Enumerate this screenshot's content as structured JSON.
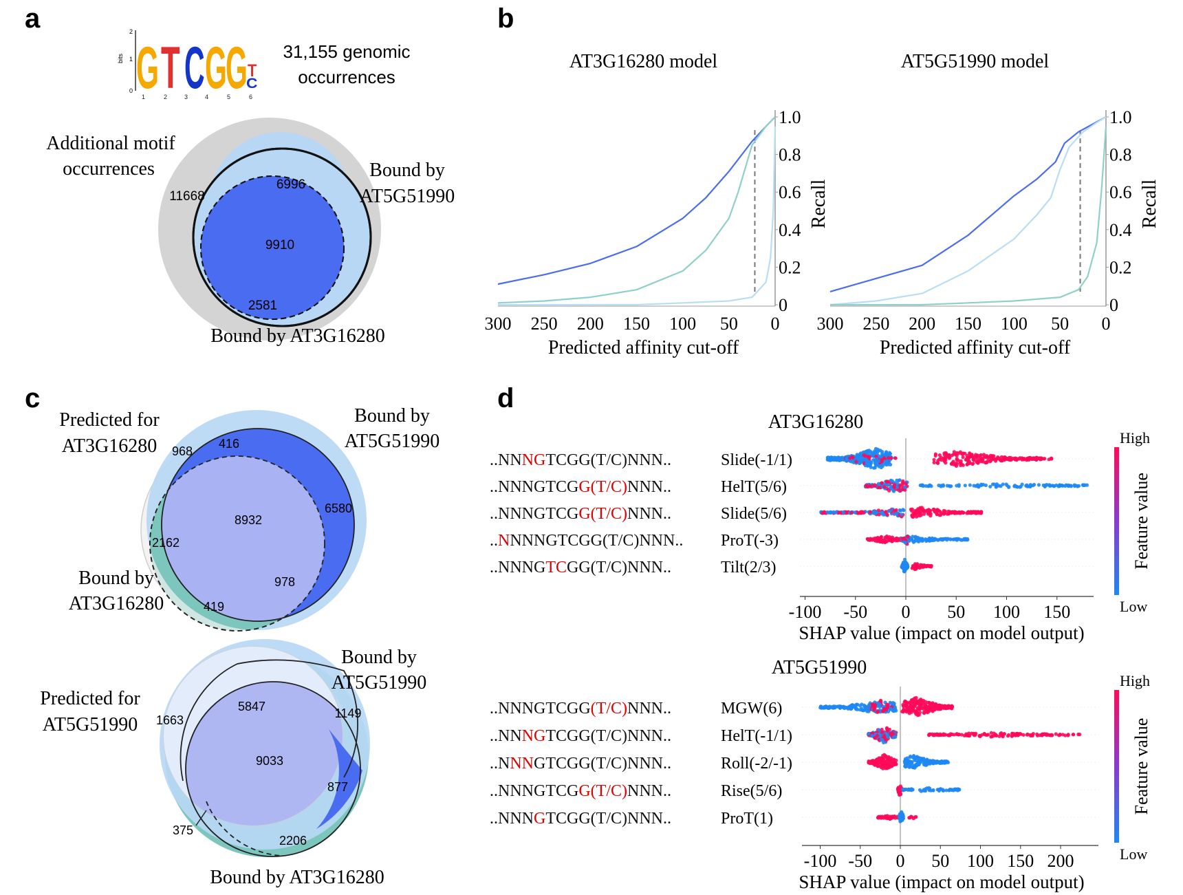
{
  "panels": {
    "a": {
      "letter": "a",
      "logo_letters": [
        "G",
        "T",
        "C",
        "G",
        "G",
        "T",
        "C"
      ],
      "logo_axis_label": "bits",
      "logo_ticks": [
        "0",
        "1",
        "2"
      ],
      "logo_positions": [
        "1",
        "2",
        "3",
        "4",
        "5",
        "6"
      ],
      "occurrences_line1": "31,155 genomic",
      "occurrences_line2": "occurrences",
      "additional_line1": "Additional motif",
      "additional_line2": "occurrences",
      "bound1_line1": "Bound by",
      "bound1_line2": "AT5G51990",
      "bound2": "Bound by AT3G16280",
      "counts": {
        "gray": "11668",
        "blue": "6996",
        "center": "9910",
        "teal": "2581"
      }
    },
    "b": {
      "letter": "b"
    },
    "c": {
      "letter": "c",
      "top": {
        "pred_line1": "Predicted for",
        "pred_line2": "AT3G16280",
        "boundA_line1": "Bound by",
        "boundA_line2": "AT5G51990",
        "boundB_line1": "Bound by",
        "boundB_line2": "AT3G16280",
        "counts": {
          "c968": "968",
          "c416": "416",
          "c6580": "6580",
          "c8932": "8932",
          "c2162": "2162",
          "c978": "978",
          "c419": "419"
        }
      },
      "bottom": {
        "pred_line1": "Predicted for",
        "pred_line2": "AT5G51990",
        "boundA_line1": "Bound by",
        "boundA_line2": "AT5G51990",
        "boundB": "Bound by AT3G16280",
        "counts": {
          "c1663": "1663",
          "c5847": "5847",
          "c1149": "1149",
          "c9033": "9033",
          "c877": "877",
          "c375": "375",
          "c2206": "2206"
        }
      }
    },
    "d": {
      "letter": "d",
      "colorbar_high": "High",
      "colorbar_low": "Low",
      "colorbar_label": "Feature value",
      "xlabel": "SHAP value (impact on model output)",
      "top": {
        "title": "AT3G16280",
        "rows": [
          {
            "seq": [
              [
                "..NN",
                "black"
              ],
              [
                "NG",
                "red"
              ],
              [
                "TCGG(T/C)NNN..",
                "black"
              ]
            ],
            "feature": "Slide(-1/1)"
          },
          {
            "seq": [
              [
                "..NNNGTCG",
                "black"
              ],
              [
                "G(T/C)",
                "red"
              ],
              [
                "NNN..",
                "black"
              ]
            ],
            "feature": "HelT(5/6)"
          },
          {
            "seq": [
              [
                "..NNNGTCG",
                "black"
              ],
              [
                "G(T/C)",
                "red"
              ],
              [
                "NNN..",
                "black"
              ]
            ],
            "feature": "Slide(5/6)"
          },
          {
            "seq": [
              [
                "..",
                "black"
              ],
              [
                "N",
                "red"
              ],
              [
                "NNNGTCGG(T/C)NNN..",
                "black"
              ]
            ],
            "feature": "ProT(-3)"
          },
          {
            "seq": [
              [
                "..NNNG",
                "black"
              ],
              [
                "TC",
                "red"
              ],
              [
                "GG(T/C)NNN..",
                "black"
              ]
            ],
            "feature": "Tilt(2/3)"
          }
        ],
        "ticks": [
          "-100",
          "-50",
          "0",
          "50",
          "100",
          "150"
        ]
      },
      "bottom": {
        "title": "AT5G51990",
        "rows": [
          {
            "seq": [
              [
                "..NNNGTCGG",
                "black"
              ],
              [
                "(T/C)",
                "red"
              ],
              [
                "NNN..",
                "black"
              ]
            ],
            "feature": "MGW(6)"
          },
          {
            "seq": [
              [
                "..NN",
                "black"
              ],
              [
                "NG",
                "red"
              ],
              [
                "TCGG(T/C)NNN..",
                "black"
              ]
            ],
            "feature": "HelT(-1/1)"
          },
          {
            "seq": [
              [
                "..N",
                "black"
              ],
              [
                "NN",
                "red"
              ],
              [
                "GTCGG(T/C)NNN..",
                "black"
              ]
            ],
            "feature": "Roll(-2/-1)"
          },
          {
            "seq": [
              [
                "..NNNGTCG",
                "black"
              ],
              [
                "G(T/C)",
                "red"
              ],
              [
                "NNN..",
                "black"
              ]
            ],
            "feature": "Rise(5/6)"
          },
          {
            "seq": [
              [
                "..NNN",
                "black"
              ],
              [
                "G",
                "red"
              ],
              [
                "TCGG(T/C)NNN..",
                "black"
              ]
            ],
            "feature": "ProT(1)"
          }
        ],
        "ticks": [
          "-100",
          "-50",
          "0",
          "50",
          "100",
          "150",
          "200"
        ]
      }
    },
    "colors": {
      "gray": "#d4d4d4",
      "light_blue": "#b7d7f5",
      "mid_blue": "#4a6cf0",
      "teal": "#7cc6bd",
      "high": "#ff0a5a",
      "low": "#1e88f5"
    }
  },
  "chart_data": [
    {
      "type": "line",
      "title": "AT3G16280 model",
      "xlabel": "Predicted affinity cut-off",
      "ylabel": "Recall",
      "xlim": [
        300,
        0
      ],
      "ylim": [
        0,
        1.0
      ],
      "x_ticks": [
        "300",
        "250",
        "200",
        "150",
        "100",
        "50",
        "0"
      ],
      "y_ticks": [
        "0",
        "0.2",
        "0.4",
        "0.6",
        "0.8",
        "1.0"
      ],
      "cutoff_line_x": 22,
      "series": [
        {
          "color": "#4a6cf0",
          "x": [
            300,
            250,
            200,
            150,
            100,
            75,
            50,
            25,
            10,
            0
          ],
          "y": [
            0.11,
            0.16,
            0.22,
            0.31,
            0.46,
            0.57,
            0.71,
            0.87,
            0.95,
            1.0
          ]
        },
        {
          "color": "#8fd0c8",
          "x": [
            300,
            250,
            200,
            150,
            100,
            75,
            50,
            40,
            25,
            10,
            0
          ],
          "y": [
            0.01,
            0.02,
            0.04,
            0.08,
            0.18,
            0.29,
            0.46,
            0.6,
            0.85,
            0.95,
            1.0
          ]
        },
        {
          "color": "#b8def5",
          "x": [
            300,
            250,
            200,
            150,
            100,
            50,
            25,
            10,
            5,
            2,
            0
          ],
          "y": [
            0.0,
            0.0,
            0.0,
            0.0,
            0.01,
            0.02,
            0.04,
            0.12,
            0.25,
            0.5,
            0.95
          ]
        }
      ]
    },
    {
      "type": "line",
      "title": "AT5G51990 model",
      "xlabel": "Predicted affinity cut-off",
      "ylabel": "Recall",
      "xlim": [
        300,
        0
      ],
      "ylim": [
        0,
        1.0
      ],
      "x_ticks": [
        "300",
        "250",
        "200",
        "150",
        "100",
        "50",
        "0"
      ],
      "y_ticks": [
        "0",
        "0.2",
        "0.4",
        "0.6",
        "0.8",
        "1.0"
      ],
      "cutoff_line_x": 28,
      "series": [
        {
          "color": "#4a6cf0",
          "x": [
            300,
            250,
            200,
            150,
            100,
            75,
            55,
            45,
            30,
            15,
            0
          ],
          "y": [
            0.07,
            0.14,
            0.21,
            0.37,
            0.58,
            0.67,
            0.76,
            0.86,
            0.92,
            0.96,
            1.0
          ]
        },
        {
          "color": "#b8def5",
          "x": [
            300,
            250,
            200,
            150,
            100,
            75,
            60,
            50,
            40,
            25,
            10,
            0
          ],
          "y": [
            0.0,
            0.02,
            0.06,
            0.18,
            0.35,
            0.48,
            0.57,
            0.72,
            0.84,
            0.92,
            0.97,
            1.0
          ]
        },
        {
          "color": "#8fd0c8",
          "x": [
            300,
            250,
            200,
            150,
            100,
            50,
            30,
            20,
            10,
            5,
            0
          ],
          "y": [
            0.0,
            0.0,
            0.0,
            0.01,
            0.02,
            0.04,
            0.08,
            0.15,
            0.33,
            0.6,
            0.95
          ]
        }
      ]
    }
  ]
}
